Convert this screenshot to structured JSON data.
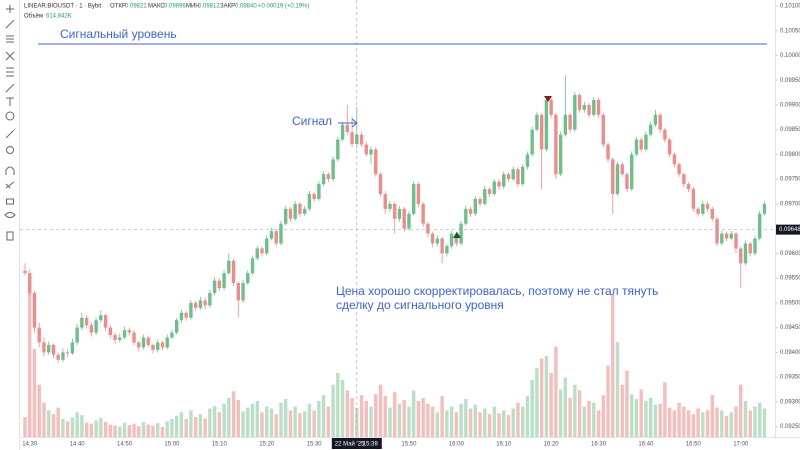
{
  "chart_data": {
    "type": "candlestick",
    "header": {
      "symbol": "LINEAR:BIOUSDT · 1 · Bybit",
      "open_label": "ОТКР",
      "open": "0.09821",
      "high_label": "МАКС",
      "high": "0.09896",
      "low_label": "МИН",
      "low": "0.09812",
      "close_label": "ЗАКР",
      "close": "0.09840",
      "change": "+0.00019 (+0.19%)",
      "volume_label": "Объём",
      "volume": "614.842K"
    },
    "annotations": {
      "signal_level_text": "Сигнальный уровень",
      "signal_text": "Сигнал",
      "note_line1": "Цена хорошо скорректировалась, поэтому не стал тянуть",
      "note_line2": "сделку до сигнального уровня"
    },
    "signal_level": 0.10023,
    "crosshair": {
      "price": {
        "value": 0.09648,
        "label": "0.09648"
      },
      "date": "22 Май '25",
      "time": "15:39",
      "index": 70
    },
    "up_color": "#6cc08b",
    "down_color": "#f08b8b",
    "volume_up_color": "#b9e0c6",
    "volume_down_color": "#f7bcbc",
    "level_color": "#3d63d8",
    "ylim": [
      0.09229,
      0.10112
    ],
    "yticks": [
      {
        "value": 0.101,
        "label": "0.10100"
      },
      {
        "value": 0.1005,
        "label": "0.10050"
      },
      {
        "value": 0.1,
        "label": "0.10000"
      },
      {
        "value": 0.0995,
        "label": "0.09950"
      },
      {
        "value": 0.099,
        "label": "0.09900"
      },
      {
        "value": 0.0985,
        "label": "0.09850"
      },
      {
        "value": 0.098,
        "label": "0.09800"
      },
      {
        "value": 0.0975,
        "label": "0.09750"
      },
      {
        "value": 0.097,
        "label": "0.09700"
      },
      {
        "value": 0.096,
        "label": "0.09600"
      },
      {
        "value": 0.0955,
        "label": "0.09550"
      },
      {
        "value": 0.095,
        "label": "0.09500"
      },
      {
        "value": 0.0945,
        "label": "0.09450"
      },
      {
        "value": 0.094,
        "label": "0.09400"
      },
      {
        "value": 0.0935,
        "label": "0.09350"
      },
      {
        "value": 0.093,
        "label": "0.09300"
      },
      {
        "value": 0.0925,
        "label": "0.09250"
      }
    ],
    "xticks": [
      {
        "value": 1,
        "label": "14:30"
      },
      {
        "value": 11,
        "label": "14:40"
      },
      {
        "value": 21,
        "label": "14:50"
      },
      {
        "value": 31,
        "label": "15:00"
      },
      {
        "value": 41,
        "label": "15:10"
      },
      {
        "value": 51,
        "label": "15:20"
      },
      {
        "value": 61,
        "label": "15:30"
      },
      {
        "value": 81,
        "label": "15:50"
      },
      {
        "value": 91,
        "label": "16:00"
      },
      {
        "value": 101,
        "label": "16:10"
      },
      {
        "value": 111,
        "label": "16:20"
      },
      {
        "value": 121,
        "label": "16:30"
      },
      {
        "value": 131,
        "label": "16:40"
      },
      {
        "value": 141,
        "label": "16:50"
      },
      {
        "value": 151,
        "label": "17:00"
      }
    ],
    "candles": [
      [
        0.09565,
        0.0958,
        0.09555,
        0.0956
      ],
      [
        0.0956,
        0.09568,
        0.09515,
        0.0952
      ],
      [
        0.0952,
        0.09525,
        0.0944,
        0.0945
      ],
      [
        0.0945,
        0.0946,
        0.0941,
        0.0942
      ],
      [
        0.0942,
        0.0943,
        0.09392,
        0.094
      ],
      [
        0.094,
        0.09422,
        0.09395,
        0.09415
      ],
      [
        0.09415,
        0.09418,
        0.09388,
        0.09395
      ],
      [
        0.09395,
        0.094,
        0.09378,
        0.09385
      ],
      [
        0.09385,
        0.09408,
        0.0938,
        0.094
      ],
      [
        0.094,
        0.09406,
        0.0939,
        0.09398
      ],
      [
        0.09398,
        0.09428,
        0.09395,
        0.0942
      ],
      [
        0.0942,
        0.09458,
        0.09415,
        0.0945
      ],
      [
        0.0945,
        0.0948,
        0.09445,
        0.0947
      ],
      [
        0.0947,
        0.09475,
        0.09448,
        0.09455
      ],
      [
        0.09455,
        0.0946,
        0.09432,
        0.0944
      ],
      [
        0.0944,
        0.0947,
        0.09435,
        0.09465
      ],
      [
        0.09465,
        0.09485,
        0.0946,
        0.09475
      ],
      [
        0.09475,
        0.09478,
        0.09444,
        0.0945
      ],
      [
        0.0945,
        0.09455,
        0.09428,
        0.09435
      ],
      [
        0.09435,
        0.0944,
        0.09418,
        0.09425
      ],
      [
        0.09425,
        0.09438,
        0.0942,
        0.0943
      ],
      [
        0.0943,
        0.09452,
        0.09426,
        0.09445
      ],
      [
        0.09445,
        0.0945,
        0.09434,
        0.0944
      ],
      [
        0.0944,
        0.09444,
        0.09414,
        0.0942
      ],
      [
        0.0942,
        0.09424,
        0.09402,
        0.0941
      ],
      [
        0.0941,
        0.09436,
        0.09406,
        0.0943
      ],
      [
        0.0943,
        0.09434,
        0.0941,
        0.09415
      ],
      [
        0.09415,
        0.09418,
        0.09398,
        0.09405
      ],
      [
        0.09405,
        0.09426,
        0.094,
        0.0942
      ],
      [
        0.0942,
        0.09424,
        0.09404,
        0.0941
      ],
      [
        0.0941,
        0.09436,
        0.09406,
        0.0943
      ],
      [
        0.0943,
        0.09446,
        0.09426,
        0.0944
      ],
      [
        0.0944,
        0.0947,
        0.09436,
        0.09465
      ],
      [
        0.09465,
        0.09486,
        0.0946,
        0.0948
      ],
      [
        0.0948,
        0.09484,
        0.09464,
        0.0947
      ],
      [
        0.0947,
        0.09506,
        0.09466,
        0.095
      ],
      [
        0.095,
        0.09504,
        0.09484,
        0.0949
      ],
      [
        0.0949,
        0.09512,
        0.09486,
        0.09505
      ],
      [
        0.09505,
        0.0951,
        0.09488,
        0.09495
      ],
      [
        0.09495,
        0.09526,
        0.0949,
        0.0952
      ],
      [
        0.0952,
        0.09552,
        0.09516,
        0.09545
      ],
      [
        0.09545,
        0.0955,
        0.09524,
        0.0953
      ],
      [
        0.0953,
        0.09566,
        0.09526,
        0.0956
      ],
      [
        0.0956,
        0.096,
        0.09556,
        0.09585
      ],
      [
        0.09585,
        0.0959,
        0.09534,
        0.0954
      ],
      [
        0.0954,
        0.09544,
        0.0947,
        0.09505
      ],
      [
        0.09505,
        0.09546,
        0.095,
        0.0954
      ],
      [
        0.0954,
        0.09566,
        0.09536,
        0.0956
      ],
      [
        0.0956,
        0.09596,
        0.09556,
        0.0959
      ],
      [
        0.0959,
        0.09616,
        0.09586,
        0.0961
      ],
      [
        0.0961,
        0.09614,
        0.09594,
        0.096
      ],
      [
        0.096,
        0.09636,
        0.09596,
        0.0963
      ],
      [
        0.0963,
        0.09652,
        0.09626,
        0.09645
      ],
      [
        0.09645,
        0.0965,
        0.09614,
        0.0962
      ],
      [
        0.0962,
        0.09666,
        0.09616,
        0.0966
      ],
      [
        0.0966,
        0.09696,
        0.09656,
        0.0969
      ],
      [
        0.0969,
        0.09694,
        0.09664,
        0.0967
      ],
      [
        0.0967,
        0.09706,
        0.09666,
        0.097
      ],
      [
        0.097,
        0.09704,
        0.09674,
        0.0968
      ],
      [
        0.0968,
        0.09696,
        0.09676,
        0.0969
      ],
      [
        0.0969,
        0.09726,
        0.09686,
        0.0972
      ],
      [
        0.0972,
        0.09724,
        0.09704,
        0.0971
      ],
      [
        0.0971,
        0.09746,
        0.09706,
        0.0974
      ],
      [
        0.0974,
        0.09766,
        0.09736,
        0.0976
      ],
      [
        0.0976,
        0.09764,
        0.09744,
        0.0975
      ],
      [
        0.0975,
        0.09796,
        0.09746,
        0.0979
      ],
      [
        0.0979,
        0.09836,
        0.09786,
        0.0983
      ],
      [
        0.0983,
        0.09866,
        0.09826,
        0.0986
      ],
      [
        0.0986,
        0.099,
        0.0984,
        0.09845
      ],
      [
        0.09845,
        0.09876,
        0.09815,
        0.09821
      ],
      [
        0.09821,
        0.09896,
        0.09812,
        0.0984
      ],
      [
        0.0984,
        0.09846,
        0.09815,
        0.0982
      ],
      [
        0.0982,
        0.09826,
        0.09795,
        0.098
      ],
      [
        0.098,
        0.09816,
        0.0978,
        0.0981
      ],
      [
        0.0981,
        0.09814,
        0.09755,
        0.0976
      ],
      [
        0.0976,
        0.09764,
        0.09715,
        0.0972
      ],
      [
        0.0972,
        0.09726,
        0.0968,
        0.0969
      ],
      [
        0.0969,
        0.09706,
        0.09684,
        0.097
      ],
      [
        0.097,
        0.09704,
        0.0964,
        0.0967
      ],
      [
        0.0967,
        0.09696,
        0.09664,
        0.0969
      ],
      [
        0.0969,
        0.09694,
        0.09644,
        0.0965
      ],
      [
        0.0965,
        0.09686,
        0.09646,
        0.0968
      ],
      [
        0.0968,
        0.09746,
        0.09676,
        0.0974
      ],
      [
        0.0974,
        0.09744,
        0.09694,
        0.097
      ],
      [
        0.097,
        0.09704,
        0.09654,
        0.0966
      ],
      [
        0.0966,
        0.09664,
        0.09634,
        0.0964
      ],
      [
        0.0964,
        0.09644,
        0.09612,
        0.0962
      ],
      [
        0.0962,
        0.09636,
        0.09614,
        0.0963
      ],
      [
        0.0963,
        0.09634,
        0.0958,
        0.096
      ],
      [
        0.096,
        0.0962,
        0.09594,
        0.09615
      ],
      [
        0.09615,
        0.09646,
        0.0961,
        0.0964
      ],
      [
        0.0964,
        0.09644,
        0.09614,
        0.0962
      ],
      [
        0.0962,
        0.09666,
        0.09616,
        0.0966
      ],
      [
        0.0966,
        0.09696,
        0.09656,
        0.0969
      ],
      [
        0.0969,
        0.09694,
        0.09674,
        0.0968
      ],
      [
        0.0968,
        0.09716,
        0.09676,
        0.0971
      ],
      [
        0.0971,
        0.09714,
        0.09694,
        0.097
      ],
      [
        0.097,
        0.09736,
        0.09696,
        0.0973
      ],
      [
        0.0973,
        0.09734,
        0.09714,
        0.0972
      ],
      [
        0.0972,
        0.0975,
        0.09716,
        0.09745
      ],
      [
        0.09745,
        0.0975,
        0.09728,
        0.09735
      ],
      [
        0.09735,
        0.09766,
        0.0973,
        0.0976
      ],
      [
        0.0976,
        0.09764,
        0.09744,
        0.0975
      ],
      [
        0.0975,
        0.09776,
        0.09746,
        0.0977
      ],
      [
        0.0977,
        0.09774,
        0.09734,
        0.0974
      ],
      [
        0.0974,
        0.0978,
        0.09736,
        0.09775
      ],
      [
        0.09775,
        0.09806,
        0.0977,
        0.098
      ],
      [
        0.098,
        0.09856,
        0.09796,
        0.0985
      ],
      [
        0.0985,
        0.09886,
        0.09846,
        0.0988
      ],
      [
        0.0988,
        0.09884,
        0.0973,
        0.0981
      ],
      [
        0.0981,
        0.09916,
        0.09806,
        0.0991
      ],
      [
        0.0991,
        0.09914,
        0.09874,
        0.0988
      ],
      [
        0.0988,
        0.09884,
        0.0975,
        0.0976
      ],
      [
        0.0976,
        0.09846,
        0.09756,
        0.0984
      ],
      [
        0.0984,
        0.0996,
        0.09836,
        0.0988
      ],
      [
        0.0988,
        0.09884,
        0.09844,
        0.0985
      ],
      [
        0.0985,
        0.09926,
        0.09846,
        0.0992
      ],
      [
        0.0992,
        0.09924,
        0.09884,
        0.0989
      ],
      [
        0.0989,
        0.09906,
        0.09884,
        0.099
      ],
      [
        0.099,
        0.09904,
        0.09874,
        0.0988
      ],
      [
        0.0988,
        0.09916,
        0.09876,
        0.0991
      ],
      [
        0.0991,
        0.09914,
        0.09874,
        0.0988
      ],
      [
        0.0988,
        0.09884,
        0.09814,
        0.0982
      ],
      [
        0.0982,
        0.09824,
        0.09784,
        0.0979
      ],
      [
        0.0979,
        0.09794,
        0.0968,
        0.0972
      ],
      [
        0.0972,
        0.09786,
        0.09716,
        0.0978
      ],
      [
        0.0978,
        0.09784,
        0.09754,
        0.0976
      ],
      [
        0.0976,
        0.09764,
        0.09724,
        0.0973
      ],
      [
        0.0973,
        0.09806,
        0.09726,
        0.098
      ],
      [
        0.098,
        0.09836,
        0.09796,
        0.0983
      ],
      [
        0.0983,
        0.09834,
        0.09804,
        0.0981
      ],
      [
        0.0981,
        0.09846,
        0.09806,
        0.0984
      ],
      [
        0.0984,
        0.09866,
        0.09836,
        0.0986
      ],
      [
        0.0986,
        0.0989,
        0.09856,
        0.0988
      ],
      [
        0.0988,
        0.09884,
        0.09844,
        0.0985
      ],
      [
        0.0985,
        0.09854,
        0.09824,
        0.0983
      ],
      [
        0.0983,
        0.09834,
        0.09794,
        0.098
      ],
      [
        0.098,
        0.09804,
        0.09774,
        0.0978
      ],
      [
        0.0978,
        0.09784,
        0.09754,
        0.0976
      ],
      [
        0.0976,
        0.09764,
        0.09734,
        0.0974
      ],
      [
        0.0974,
        0.09744,
        0.09724,
        0.0973
      ],
      [
        0.0973,
        0.09734,
        0.09684,
        0.0969
      ],
      [
        0.0969,
        0.09694,
        0.09674,
        0.0968
      ],
      [
        0.0968,
        0.09706,
        0.09676,
        0.097
      ],
      [
        0.097,
        0.09704,
        0.09684,
        0.0969
      ],
      [
        0.0969,
        0.09694,
        0.09664,
        0.0967
      ],
      [
        0.0967,
        0.09674,
        0.09614,
        0.0962
      ],
      [
        0.0962,
        0.09646,
        0.09616,
        0.0964
      ],
      [
        0.0964,
        0.09644,
        0.09624,
        0.0963
      ],
      [
        0.0963,
        0.09646,
        0.09626,
        0.0964
      ],
      [
        0.0964,
        0.09644,
        0.096,
        0.0961
      ],
      [
        0.0961,
        0.09614,
        0.0953,
        0.0958
      ],
      [
        0.0958,
        0.09626,
        0.09576,
        0.0962
      ],
      [
        0.0962,
        0.09624,
        0.09594,
        0.096
      ],
      [
        0.096,
        0.09636,
        0.09596,
        0.0963
      ],
      [
        0.0963,
        0.09686,
        0.09626,
        0.0968
      ],
      [
        0.0968,
        0.09706,
        0.09676,
        0.097
      ]
    ],
    "volumes": [
      420,
      3050,
      1850,
      1100,
      720,
      560,
      480,
      620,
      380,
      330,
      410,
      520,
      460,
      300,
      280,
      350,
      400,
      320,
      260,
      240,
      220,
      300,
      250,
      280,
      230,
      310,
      260,
      240,
      290,
      210,
      330,
      380,
      450,
      520,
      380,
      560,
      420,
      480,
      390,
      600,
      650,
      520,
      700,
      820,
      960,
      780,
      540,
      620,
      700,
      760,
      520,
      640,
      600,
      480,
      720,
      800,
      560,
      640,
      500,
      540,
      700,
      560,
      760,
      880,
      640,
      1100,
      1350,
      1200,
      980,
      820,
      614.842,
      880,
      760,
      640,
      900,
      1100,
      860,
      620,
      940,
      700,
      780,
      640,
      980,
      760,
      820,
      700,
      640,
      520,
      860,
      560,
      640,
      520,
      700,
      800,
      600,
      680,
      520,
      600,
      480,
      640,
      500,
      560,
      460,
      600,
      720,
      640,
      860,
      1200,
      1450,
      1650,
      1700,
      1350,
      1900,
      1000,
      1250,
      820,
      1100,
      980,
      640,
      760,
      720,
      560,
      880,
      1500,
      3000,
      2000,
      1100,
      1400,
      900,
      800,
      1000,
      760,
      820,
      680,
      700,
      1150,
      620,
      560,
      720,
      640,
      560,
      480,
      600,
      520,
      560,
      880,
      620,
      560,
      440,
      520,
      640,
      1100,
      760,
      560,
      640,
      720,
      600
    ]
  }
}
